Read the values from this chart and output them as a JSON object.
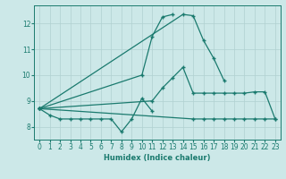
{
  "xlabel": "Humidex (Indice chaleur)",
  "x_values": [
    0,
    1,
    2,
    3,
    4,
    5,
    6,
    7,
    8,
    9,
    10,
    11,
    12,
    13,
    14,
    15,
    16,
    17,
    18,
    19,
    20,
    21,
    22,
    23
  ],
  "line1": [
    8.7,
    8.45,
    8.3,
    8.3,
    8.3,
    8.3,
    8.3,
    8.3,
    7.8,
    8.3,
    9.1,
    8.6,
    null,
    null,
    null,
    null,
    null,
    null,
    null,
    null,
    null,
    null,
    null,
    null
  ],
  "line2": [
    8.7,
    null,
    null,
    null,
    null,
    null,
    null,
    null,
    null,
    null,
    10.0,
    11.5,
    12.25,
    12.35,
    null,
    null,
    null,
    null,
    null,
    null,
    null,
    null,
    null,
    null
  ],
  "line3": [
    8.7,
    null,
    null,
    null,
    null,
    null,
    null,
    null,
    null,
    null,
    null,
    null,
    null,
    null,
    12.35,
    12.3,
    11.35,
    10.65,
    9.8,
    null,
    null,
    null,
    null,
    null
  ],
  "line4_a": [
    8.7,
    null,
    null,
    null,
    null,
    null,
    null,
    null,
    null,
    null,
    null,
    9.0,
    9.5,
    9.9,
    10.3,
    9.3,
    9.3,
    9.3,
    9.3,
    9.3,
    9.3,
    9.35,
    9.35,
    8.3
  ],
  "line4_b": [
    8.7,
    null,
    null,
    null,
    null,
    null,
    null,
    null,
    null,
    null,
    null,
    null,
    null,
    null,
    null,
    8.3,
    8.3,
    8.3,
    8.3,
    8.3,
    8.3,
    8.3,
    8.3,
    8.3
  ],
  "line_color": "#1a7a6e",
  "bg_color": "#cce8e8",
  "grid_color": "#b0d0d0",
  "ylim": [
    7.5,
    12.7
  ],
  "xlim": [
    -0.5,
    23.5
  ],
  "yticks": [
    8,
    9,
    10,
    11,
    12
  ],
  "xticks": [
    0,
    1,
    2,
    3,
    4,
    5,
    6,
    7,
    8,
    9,
    10,
    11,
    12,
    13,
    14,
    15,
    16,
    17,
    18,
    19,
    20,
    21,
    22,
    23
  ]
}
